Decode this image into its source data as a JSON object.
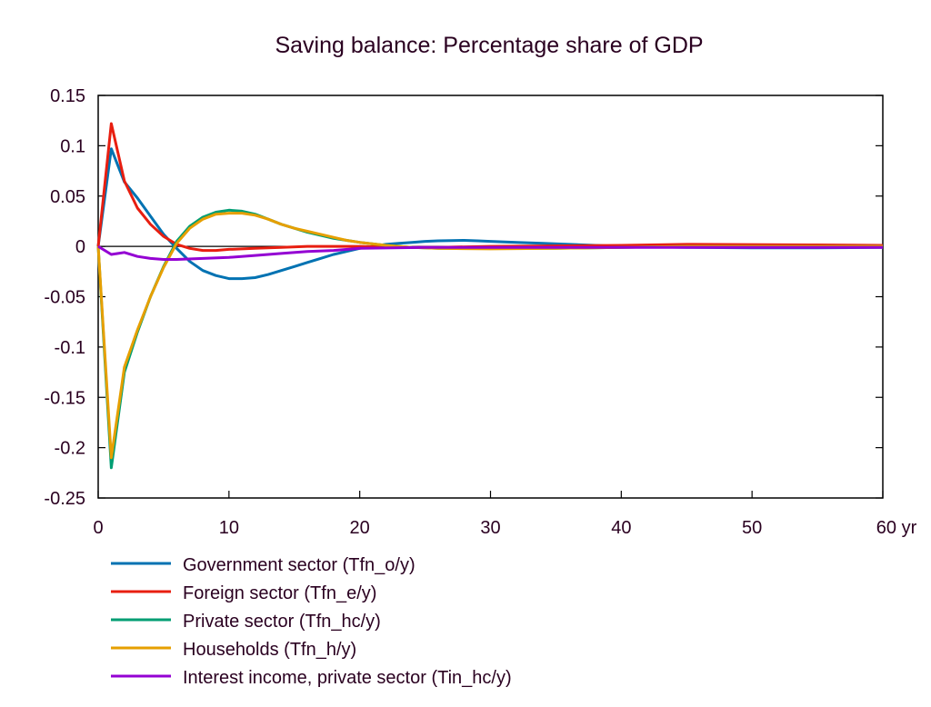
{
  "chart_data": {
    "type": "line",
    "title": "Saving balance: Percentage share of GDP",
    "xlabel": "",
    "ylabel": "",
    "xlim": [
      0,
      60
    ],
    "ylim": [
      -0.25,
      0.15
    ],
    "xticks": [
      0,
      10,
      20,
      30,
      40,
      50,
      60
    ],
    "xtick_labels": [
      "0",
      "10",
      "20",
      "30",
      "40",
      "50",
      "60 yr"
    ],
    "yticks": [
      0.15,
      0.1,
      0.05,
      0,
      -0.05,
      -0.1,
      -0.15,
      -0.2,
      -0.25
    ],
    "ytick_labels": [
      "0.15",
      "0.1",
      "0.05",
      "0",
      "-0.05",
      "-0.1",
      "-0.15",
      "-0.2",
      "-0.25"
    ],
    "grid": false,
    "legend_position": "bottom-left",
    "series": [
      {
        "name": "Government sector (Tfn_o/y)",
        "color": "#0072b2",
        "x": [
          0,
          1,
          2,
          3,
          4,
          5,
          6,
          7,
          8,
          9,
          10,
          11,
          12,
          13,
          14,
          15,
          16,
          17,
          18,
          19,
          20,
          21,
          22,
          23,
          24,
          25,
          26,
          27,
          28,
          29,
          30,
          32,
          34,
          36,
          38,
          40,
          45,
          50,
          55,
          60
        ],
        "y": [
          0,
          0.097,
          0.064,
          0.048,
          0.03,
          0.012,
          -0.002,
          -0.015,
          -0.024,
          -0.029,
          -0.032,
          -0.032,
          -0.031,
          -0.028,
          -0.024,
          -0.02,
          -0.016,
          -0.012,
          -0.008,
          -0.005,
          -0.002,
          0,
          0.002,
          0.003,
          0.004,
          0.005,
          0.0055,
          0.0058,
          0.006,
          0.0055,
          0.005,
          0.004,
          0.003,
          0.002,
          0.001,
          0,
          -0.001,
          -0.0015,
          -0.0015,
          -0.001
        ]
      },
      {
        "name": "Foreign sector (Tfn_e/y)",
        "color": "#e81e10",
        "x": [
          0,
          1,
          2,
          3,
          4,
          5,
          6,
          7,
          8,
          9,
          10,
          12,
          14,
          16,
          20,
          23,
          26,
          30,
          40,
          45,
          55,
          60
        ],
        "y": [
          0,
          0.122,
          0.065,
          0.038,
          0.022,
          0.01,
          0.002,
          -0.002,
          -0.004,
          -0.004,
          -0.003,
          -0.002,
          -0.001,
          0,
          0,
          -0.001,
          -0.001,
          0,
          0.001,
          0.002,
          0.0015,
          0.001
        ]
      },
      {
        "name": "Private sector (Tfn_hc/y)",
        "color": "#009e73",
        "x": [
          0,
          1,
          2,
          3,
          4,
          5,
          6,
          7,
          8,
          9,
          10,
          11,
          12,
          13,
          14,
          15,
          16,
          17,
          18,
          19,
          20,
          22,
          24,
          26,
          30,
          35,
          40,
          45,
          60
        ],
        "y": [
          0,
          -0.22,
          -0.125,
          -0.085,
          -0.05,
          -0.02,
          0.005,
          0.02,
          0.029,
          0.034,
          0.036,
          0.035,
          0.032,
          0.027,
          0.022,
          0.018,
          0.014,
          0.011,
          0.008,
          0.006,
          0.004,
          0.001,
          -0.001,
          -0.002,
          -0.002,
          -0.002,
          -0.001,
          0,
          0
        ]
      },
      {
        "name": "Households (Tfn_h/y)",
        "color": "#e69f00",
        "x": [
          0,
          1,
          2,
          3,
          4,
          5,
          6,
          7,
          8,
          9,
          10,
          11,
          12,
          13,
          14,
          15,
          16,
          17,
          18,
          19,
          20,
          22,
          24,
          26,
          30,
          35,
          40,
          45,
          60
        ],
        "y": [
          0,
          -0.21,
          -0.12,
          -0.083,
          -0.05,
          -0.021,
          0.003,
          0.018,
          0.027,
          0.032,
          0.033,
          0.033,
          0.031,
          0.027,
          0.022,
          0.018,
          0.015,
          0.012,
          0.009,
          0.006,
          0.004,
          0.001,
          -0.001,
          -0.002,
          -0.0025,
          -0.002,
          -0.001,
          0,
          0
        ]
      },
      {
        "name": "Interest income, private sector (Tin_hc/y)",
        "color": "#9400d3",
        "x": [
          0,
          1,
          2,
          3,
          4,
          5,
          6,
          8,
          10,
          12,
          14,
          16,
          18,
          20,
          25,
          30,
          40,
          60
        ],
        "y": [
          0,
          -0.008,
          -0.006,
          -0.01,
          -0.012,
          -0.013,
          -0.013,
          -0.012,
          -0.011,
          -0.009,
          -0.007,
          -0.005,
          -0.004,
          -0.002,
          -0.001,
          -0.001,
          -0.001,
          -0.001
        ]
      }
    ]
  }
}
